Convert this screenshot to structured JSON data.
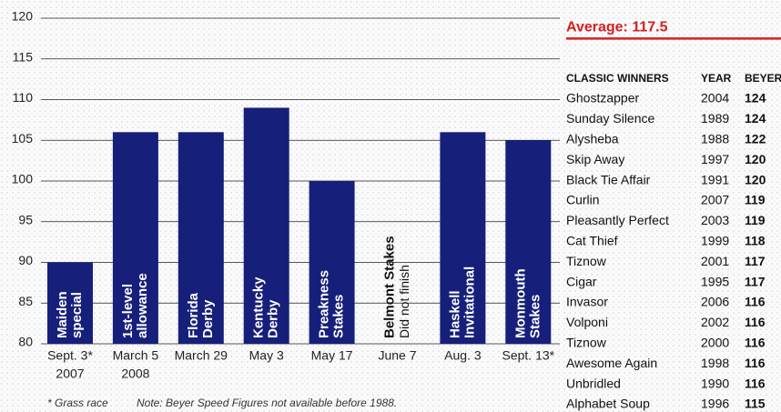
{
  "chart_data": {
    "type": "bar",
    "categories": [
      "Sept. 3*",
      "March 5",
      "March 29",
      "May 3",
      "May 17",
      "June 7",
      "Aug. 3",
      "Sept. 13*"
    ],
    "category_sublabels": [
      "2007",
      "2008",
      null,
      null,
      null,
      null,
      null,
      null
    ],
    "bar_labels": [
      "Maiden special",
      "1st-level allowance",
      "Florida Derby",
      "Kentucky Derby",
      "Preakness Stakes",
      "Belmont Stakes",
      "Haskell Invitational",
      "Monmouth Stakes"
    ],
    "values": [
      90,
      106,
      106,
      109,
      100,
      null,
      106,
      105
    ],
    "annotations": {
      "5": "Did not finish"
    },
    "color": "#16207a",
    "ylim": [
      80,
      120
    ],
    "yticks": [
      80,
      85,
      90,
      95,
      100,
      105,
      110,
      115,
      120
    ],
    "grid": true,
    "average": {
      "value": 117.5,
      "label": "Average: 117.5",
      "color": "#d42020"
    },
    "footnotes": [
      "* Grass race",
      "Note: Beyer Speed Figures not available before 1988."
    ]
  },
  "table": {
    "columns": [
      "CLASSIC WINNERS",
      "YEAR",
      "BEYER"
    ],
    "rows": [
      [
        "Ghostzapper",
        "2004",
        "124"
      ],
      [
        "Sunday Silence",
        "1989",
        "124"
      ],
      [
        "Alysheba",
        "1988",
        "122"
      ],
      [
        "Skip Away",
        "1997",
        "120"
      ],
      [
        "Black Tie Affair",
        "1991",
        "120"
      ],
      [
        "Curlin",
        "2007",
        "119"
      ],
      [
        "Pleasantly Perfect",
        "2003",
        "119"
      ],
      [
        "Cat Thief",
        "1999",
        "118"
      ],
      [
        "Tiznow",
        "2001",
        "117"
      ],
      [
        "Cigar",
        "1995",
        "117"
      ],
      [
        "Invasor",
        "2006",
        "116"
      ],
      [
        "Volponi",
        "2002",
        "116"
      ],
      [
        "Tiznow",
        "2000",
        "116"
      ],
      [
        "Awesome Again",
        "1998",
        "116"
      ],
      [
        "Unbridled",
        "1990",
        "116"
      ],
      [
        "Alphabet Soup",
        "1996",
        "115"
      ]
    ]
  }
}
